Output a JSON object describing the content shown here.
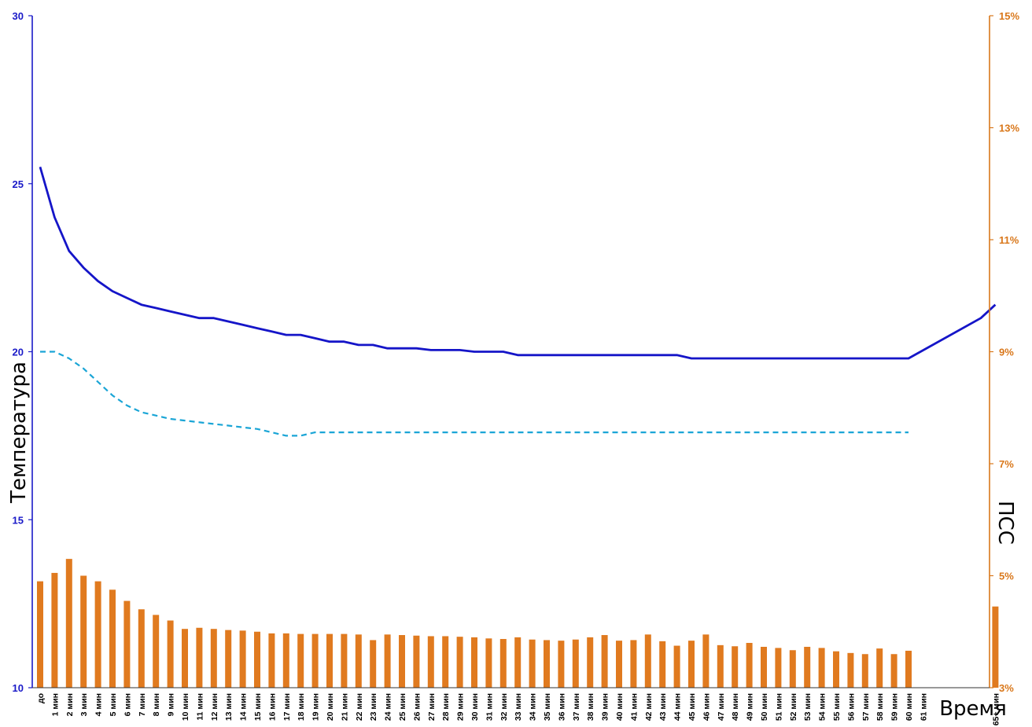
{
  "chart_data": {
    "type": "line+bar",
    "categories": [
      "до",
      "1 мин",
      "2 мин",
      "3 мин",
      "4 мин",
      "5 мин",
      "6 мин",
      "7 мин",
      "8 мин",
      "9 мин",
      "10 мин",
      "11 мин",
      "12 мин",
      "13 мин",
      "14 мин",
      "15 мин",
      "16 мин",
      "17 мин",
      "18 мин",
      "19 мин",
      "20 мин",
      "21 мин",
      "22 мин",
      "23 мин",
      "24 мин",
      "25 мин",
      "26 мин",
      "27 мин",
      "28 мин",
      "29 мин",
      "30 мин",
      "31 мин",
      "32 мин",
      "33 мин",
      "34 мин",
      "35 мин",
      "36 мин",
      "37 мин",
      "38 мин",
      "39 мин",
      "40 мин",
      "41 мин",
      "42 мин",
      "43 мин",
      "44 мин",
      "45 мин",
      "46 мин",
      "47 мин",
      "48 мин",
      "49 мин",
      "50 мин",
      "51 мин",
      "52 мин",
      "53 мин",
      "54 мин",
      "55 мин",
      "56 мин",
      "57 мин",
      "58 мин",
      "59 мин",
      "60 мин",
      "61 мин",
      "",
      "",
      "",
      "",
      "65+ мин"
    ],
    "ylabel": "Температура",
    "y2label": "ПСС",
    "xlabel": "Время",
    "ylim": [
      10,
      30
    ],
    "y2lim": [
      3,
      15
    ],
    "yticks": [
      10,
      15,
      20,
      25,
      30
    ],
    "y2ticks": [
      "3%",
      "5%",
      "7%",
      "9%",
      "11%",
      "13%",
      "15%"
    ],
    "y2tick_values": [
      3,
      5,
      7,
      9,
      11,
      13,
      15
    ],
    "grid": false,
    "legend": "none",
    "colors": {
      "temp_solid": "#1515c8",
      "temp_dashed": "#1aa5d6",
      "bars": "#e07a1f",
      "left_axis": "#1a1ac8",
      "right_axis": "#d9771a"
    },
    "series": [
      {
        "type": "line",
        "axis": "left",
        "style": "solid",
        "values": [
          25.5,
          24.0,
          23.0,
          22.5,
          22.1,
          21.8,
          21.6,
          21.4,
          21.3,
          21.2,
          21.1,
          21.0,
          21.0,
          20.9,
          20.8,
          20.7,
          20.6,
          20.5,
          20.5,
          20.4,
          20.3,
          20.3,
          20.2,
          20.2,
          20.1,
          20.1,
          20.1,
          20.05,
          20.05,
          20.05,
          20.0,
          20.0,
          20.0,
          19.9,
          19.9,
          19.9,
          19.9,
          19.9,
          19.9,
          19.9,
          19.9,
          19.9,
          19.9,
          19.9,
          19.9,
          19.8,
          19.8,
          19.8,
          19.8,
          19.8,
          19.8,
          19.8,
          19.8,
          19.8,
          19.8,
          19.8,
          19.8,
          19.8,
          19.8,
          19.8,
          19.8,
          null,
          null,
          null,
          null,
          21.0,
          21.4
        ],
        "extra_x_index": [
          null
        ]
      },
      {
        "type": "line",
        "axis": "left",
        "style": "dashed",
        "values": [
          20.0,
          20.0,
          19.8,
          19.5,
          19.1,
          18.7,
          18.4,
          18.2,
          18.1,
          18.0,
          17.95,
          17.9,
          17.85,
          17.8,
          17.75,
          17.7,
          17.6,
          17.5,
          17.5,
          17.6,
          17.6,
          17.6,
          17.6,
          17.6,
          17.6,
          17.6,
          17.6,
          17.6,
          17.6,
          17.6,
          17.6,
          17.6,
          17.6,
          17.6,
          17.6,
          17.6,
          17.6,
          17.6,
          17.6,
          17.6,
          17.6,
          17.6,
          17.6,
          17.6,
          17.6,
          17.6,
          17.6,
          17.6,
          17.6,
          17.6,
          17.6,
          17.6,
          17.6,
          17.6,
          17.6,
          17.6,
          17.6,
          17.6,
          17.6,
          17.6,
          17.6,
          null,
          null,
          null,
          null,
          null,
          null
        ]
      },
      {
        "type": "bar",
        "axis": "right",
        "unit": "%",
        "values": [
          4.9,
          5.05,
          5.3,
          5.0,
          4.9,
          4.75,
          4.55,
          4.4,
          4.3,
          4.2,
          4.05,
          4.07,
          4.05,
          4.03,
          4.02,
          4.0,
          3.97,
          3.97,
          3.96,
          3.96,
          3.96,
          3.96,
          3.95,
          3.85,
          3.95,
          3.94,
          3.93,
          3.92,
          3.92,
          3.91,
          3.9,
          3.88,
          3.87,
          3.9,
          3.86,
          3.85,
          3.84,
          3.86,
          3.9,
          3.94,
          3.84,
          3.85,
          3.95,
          3.83,
          3.75,
          3.84,
          3.95,
          3.76,
          3.74,
          3.8,
          3.73,
          3.71,
          3.67,
          3.73,
          3.71,
          3.65,
          3.62,
          3.6,
          3.7,
          3.6,
          3.66,
          null,
          null,
          null,
          null,
          null,
          4.45
        ]
      }
    ]
  }
}
